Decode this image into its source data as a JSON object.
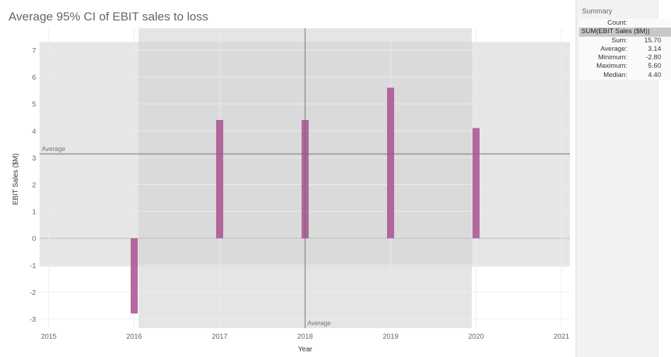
{
  "chart_data": {
    "type": "bar",
    "title": "Average 95% CI of EBIT sales to loss",
    "xlabel": "Year",
    "ylabel": "EBIT Sales ($M)",
    "x_ticks": [
      2015,
      2016,
      2017,
      2018,
      2019,
      2020,
      2021
    ],
    "y_ticks": [
      -3,
      -2,
      -1,
      0,
      1,
      2,
      3,
      4,
      5,
      6,
      7
    ],
    "xlim": [
      2015,
      2021
    ],
    "ylim": [
      -3.25,
      7.6
    ],
    "x": [
      2016,
      2017,
      2018,
      2019,
      2020
    ],
    "series": [
      {
        "values": [
          -2.8,
          4.4,
          4.4,
          5.6,
          4.1
        ]
      }
    ],
    "reference_lines": {
      "y_average": {
        "label": "Average",
        "value": 3.14
      },
      "x_average": {
        "label": "Average",
        "value": 2018
      }
    },
    "confidence_bands": {
      "y_band": [
        -1.05,
        7.3
      ],
      "x_band": [
        2016.05,
        2019.95
      ]
    },
    "bar_color": "#a8508f",
    "grid": true
  },
  "summary": {
    "title": "Summary",
    "count_label": "Count:",
    "measure_label": "SUM(EBIT Sales ($M))",
    "rows": [
      {
        "label": "Sum:",
        "value": "15.70"
      },
      {
        "label": "Average:",
        "value": "3.14"
      },
      {
        "label": "Minimum:",
        "value": "-2.80"
      },
      {
        "label": "Maximum:",
        "value": "5.60"
      },
      {
        "label": "Median:",
        "value": "4.40"
      }
    ]
  }
}
